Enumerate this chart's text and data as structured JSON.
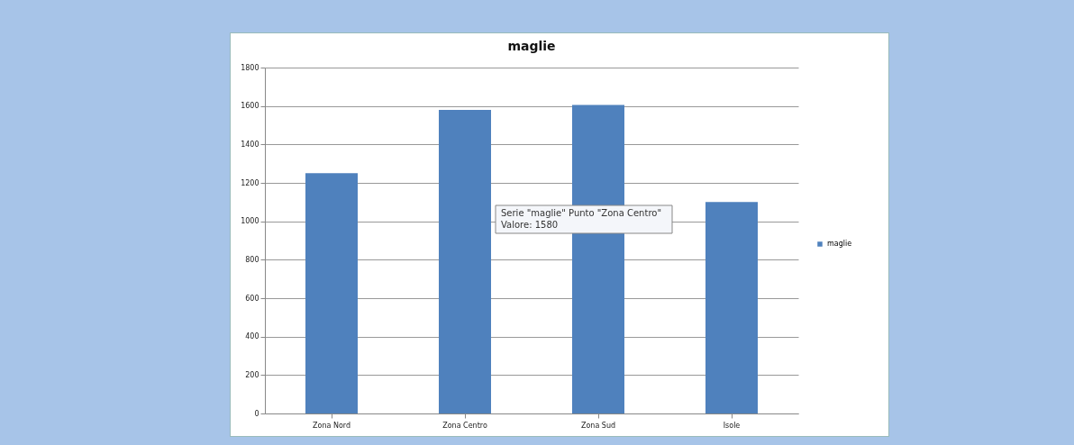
{
  "chart_data": {
    "type": "bar",
    "title": "maglie",
    "categories": [
      "Zona Nord",
      "Zona Centro",
      "Zona Sud",
      "Isole"
    ],
    "series": [
      {
        "name": "maglie",
        "color": "#4f81bd",
        "values": [
          1250,
          1580,
          1605,
          1100
        ]
      }
    ],
    "ylim": [
      0,
      1800
    ],
    "yticks": [
      0,
      200,
      400,
      600,
      800,
      1000,
      1200,
      1400,
      1600,
      1800
    ],
    "grid": "y",
    "legend": "right",
    "annotations": [
      "Serie \"maglie\" Punto \"Zona Centro\"\nValore: 1580"
    ]
  }
}
